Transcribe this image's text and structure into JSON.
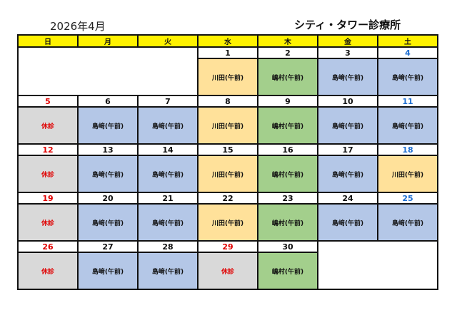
{
  "header": {
    "month": "2026年4月",
    "clinic": "シティ・タワー診療所"
  },
  "weekdays": [
    "日",
    "月",
    "火",
    "水",
    "木",
    "金",
    "土"
  ],
  "colors": {
    "kawada": "#ffe19a",
    "shimamura": "#a3cf8c",
    "shimazaki": "#b4c7e7",
    "holiday": "#d9d9d9",
    "header": "#fff200",
    "saturday_text": "#1f6fd1",
    "holiday_text": "#e00000"
  },
  "weeks": [
    [
      null,
      null,
      null,
      {
        "date": "1",
        "label": "川田(午前)",
        "type": "kawada"
      },
      {
        "date": "2",
        "label": "嶋村(午前)",
        "type": "shimamura"
      },
      {
        "date": "3",
        "label": "島﨑(午前)",
        "type": "shimazaki"
      },
      {
        "date": "4",
        "label": "島﨑(午前)",
        "type": "shimazaki",
        "day": "sat"
      }
    ],
    [
      {
        "date": "5",
        "label": "休診",
        "type": "holiday",
        "day": "red"
      },
      {
        "date": "6",
        "label": "島﨑(午前)",
        "type": "shimazaki"
      },
      {
        "date": "7",
        "label": "島﨑(午前)",
        "type": "shimazaki"
      },
      {
        "date": "8",
        "label": "川田(午前)",
        "type": "kawada"
      },
      {
        "date": "9",
        "label": "嶋村(午前)",
        "type": "shimamura"
      },
      {
        "date": "10",
        "label": "島﨑(午前)",
        "type": "shimazaki"
      },
      {
        "date": "11",
        "label": "島﨑(午前)",
        "type": "shimazaki",
        "day": "sat"
      }
    ],
    [
      {
        "date": "12",
        "label": "休診",
        "type": "holiday",
        "day": "red"
      },
      {
        "date": "13",
        "label": "島﨑(午前)",
        "type": "shimazaki"
      },
      {
        "date": "14",
        "label": "島﨑(午前)",
        "type": "shimazaki"
      },
      {
        "date": "15",
        "label": "川田(午前)",
        "type": "kawada"
      },
      {
        "date": "16",
        "label": "嶋村(午前)",
        "type": "shimamura"
      },
      {
        "date": "17",
        "label": "島﨑(午前)",
        "type": "shimazaki"
      },
      {
        "date": "18",
        "label": "川田(午前)",
        "type": "kawada",
        "day": "sat"
      }
    ],
    [
      {
        "date": "19",
        "label": "休診",
        "type": "holiday",
        "day": "red"
      },
      {
        "date": "20",
        "label": "島﨑(午前)",
        "type": "shimazaki"
      },
      {
        "date": "21",
        "label": "島﨑(午前)",
        "type": "shimazaki"
      },
      {
        "date": "22",
        "label": "川田(午前)",
        "type": "kawada"
      },
      {
        "date": "23",
        "label": "嶋村(午前)",
        "type": "shimamura"
      },
      {
        "date": "24",
        "label": "島﨑(午前)",
        "type": "shimazaki"
      },
      {
        "date": "25",
        "label": "島﨑(午前)",
        "type": "shimazaki",
        "day": "sat"
      }
    ],
    [
      {
        "date": "26",
        "label": "休診",
        "type": "holiday",
        "day": "red"
      },
      {
        "date": "27",
        "label": "島﨑(午前)",
        "type": "shimazaki"
      },
      {
        "date": "28",
        "label": "島﨑(午前)",
        "type": "shimazaki"
      },
      {
        "date": "29",
        "label": "休診",
        "type": "holiday",
        "day": "red"
      },
      {
        "date": "30",
        "label": "嶋村(午前)",
        "type": "shimamura"
      },
      null,
      null
    ]
  ]
}
